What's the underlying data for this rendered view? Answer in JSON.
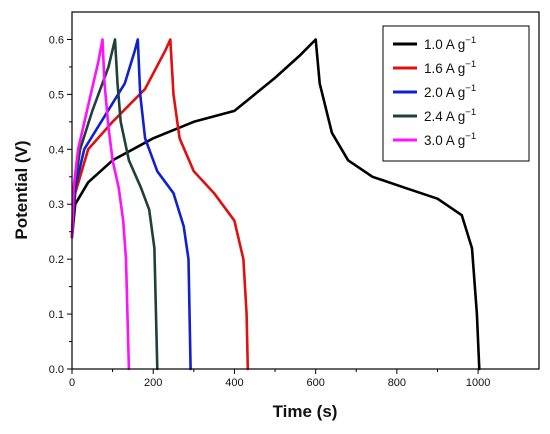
{
  "chart_data": {
    "type": "line",
    "title": "",
    "xlabel": "Time (s)",
    "ylabel": "Potential (V)",
    "xlim": [
      0,
      1150
    ],
    "ylim": [
      0.0,
      0.65
    ],
    "x_ticks": [
      "0",
      "200",
      "400",
      "600",
      "800",
      "1000"
    ],
    "y_ticks": [
      "0.0",
      "0.1",
      "0.2",
      "0.3",
      "0.4",
      "0.5",
      "0.6"
    ],
    "grid": false,
    "legend_position": "top-right",
    "series": [
      {
        "name": "1.0 A g",
        "name_superscript": "−1",
        "color": "#000000",
        "points": [
          [
            0,
            0.24
          ],
          [
            8,
            0.3
          ],
          [
            40,
            0.34
          ],
          [
            100,
            0.38
          ],
          [
            200,
            0.42
          ],
          [
            300,
            0.45
          ],
          [
            400,
            0.47
          ],
          [
            500,
            0.53
          ],
          [
            560,
            0.57
          ],
          [
            600,
            0.6
          ],
          [
            610,
            0.52
          ],
          [
            640,
            0.43
          ],
          [
            680,
            0.38
          ],
          [
            740,
            0.35
          ],
          [
            820,
            0.33
          ],
          [
            900,
            0.31
          ],
          [
            960,
            0.28
          ],
          [
            985,
            0.22
          ],
          [
            997,
            0.1
          ],
          [
            1003,
            0.0
          ]
        ]
      },
      {
        "name": "1.6 A g",
        "name_superscript": "−1",
        "color": "#e01010",
        "points": [
          [
            0,
            0.24
          ],
          [
            8,
            0.32
          ],
          [
            40,
            0.4
          ],
          [
            100,
            0.45
          ],
          [
            180,
            0.51
          ],
          [
            230,
            0.58
          ],
          [
            242,
            0.6
          ],
          [
            250,
            0.5
          ],
          [
            265,
            0.42
          ],
          [
            300,
            0.36
          ],
          [
            350,
            0.32
          ],
          [
            400,
            0.27
          ],
          [
            422,
            0.2
          ],
          [
            430,
            0.1
          ],
          [
            433,
            0.0
          ]
        ]
      },
      {
        "name": "2.0 A g",
        "name_superscript": "−1",
        "color": "#1020d0",
        "points": [
          [
            0,
            0.24
          ],
          [
            8,
            0.33
          ],
          [
            30,
            0.4
          ],
          [
            80,
            0.46
          ],
          [
            130,
            0.52
          ],
          [
            155,
            0.58
          ],
          [
            162,
            0.6
          ],
          [
            168,
            0.5
          ],
          [
            180,
            0.42
          ],
          [
            210,
            0.36
          ],
          [
            250,
            0.32
          ],
          [
            275,
            0.26
          ],
          [
            287,
            0.2
          ],
          [
            292,
            0.0
          ]
        ]
      },
      {
        "name": "2.4 A g",
        "name_superscript": "−1",
        "color": "#1f4038",
        "points": [
          [
            0,
            0.24
          ],
          [
            6,
            0.33
          ],
          [
            20,
            0.4
          ],
          [
            50,
            0.47
          ],
          [
            90,
            0.55
          ],
          [
            106,
            0.6
          ],
          [
            112,
            0.52
          ],
          [
            120,
            0.45
          ],
          [
            140,
            0.38
          ],
          [
            170,
            0.33
          ],
          [
            190,
            0.29
          ],
          [
            203,
            0.22
          ],
          [
            210,
            0.0
          ]
        ]
      },
      {
        "name": "3.0 A g",
        "name_superscript": "−1",
        "color": "#ff10ff",
        "points": [
          [
            0,
            0.24
          ],
          [
            4,
            0.33
          ],
          [
            15,
            0.4
          ],
          [
            40,
            0.48
          ],
          [
            65,
            0.56
          ],
          [
            75,
            0.6
          ],
          [
            80,
            0.52
          ],
          [
            90,
            0.44
          ],
          [
            100,
            0.38
          ],
          [
            115,
            0.33
          ],
          [
            126,
            0.27
          ],
          [
            133,
            0.2
          ],
          [
            140,
            0.0
          ]
        ]
      }
    ]
  }
}
